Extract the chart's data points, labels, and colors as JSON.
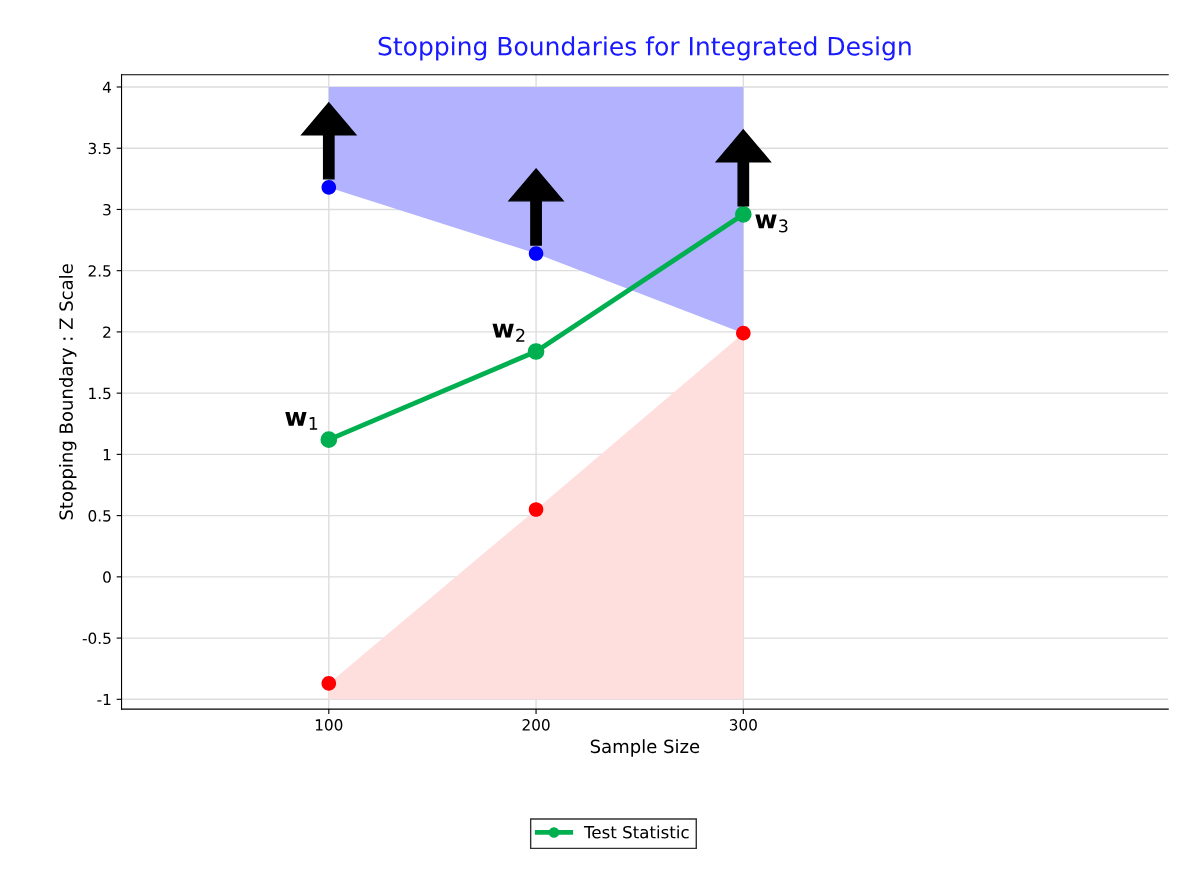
{
  "chart_data": {
    "type": "line",
    "title": "Stopping Boundaries for Integrated Design",
    "xlabel": "Sample Size",
    "ylabel": "Stopping Boundary : Z Scale",
    "x": [
      100,
      200,
      300
    ],
    "series": [
      {
        "type": "scatter",
        "color": "#0000ff",
        "values": [
          3.18,
          2.64,
          null
        ],
        "lower": [
          3.18,
          2.64,
          1.99
        ],
        "upper": [
          4,
          4,
          4
        ]
      },
      {
        "type": "scatter",
        "color": "#ff0000",
        "values": [
          -0.87,
          0.55,
          1.99
        ],
        "lower": [
          -1,
          -1,
          -1
        ],
        "upper": [
          -0.87,
          0.55,
          1.99
        ]
      },
      {
        "name": "Test Statistic",
        "color": "#00b050",
        "values": [
          1.12,
          1.84,
          2.96
        ]
      }
    ],
    "annotations": [
      {
        "text": "w$_{1}$",
        "x": 100,
        "y": 1.12
      },
      {
        "text": "w$_{2}$",
        "x": 200,
        "y": 1.84
      },
      {
        "text": "w$_{3}$",
        "x": 300,
        "y": 2.96
      }
    ],
    "xlim": [
      0,
      505
    ],
    "xticks": [
      100,
      200,
      300
    ],
    "ylim": [
      -1.08,
      4.1
    ],
    "yticks": [
      -1,
      -0.5,
      0,
      0.5,
      1,
      1.5,
      2,
      2.5,
      3,
      3.5,
      4
    ],
    "grid": true,
    "legend": "bottom",
    "marker": "circle",
    "line_style": "solid"
  }
}
